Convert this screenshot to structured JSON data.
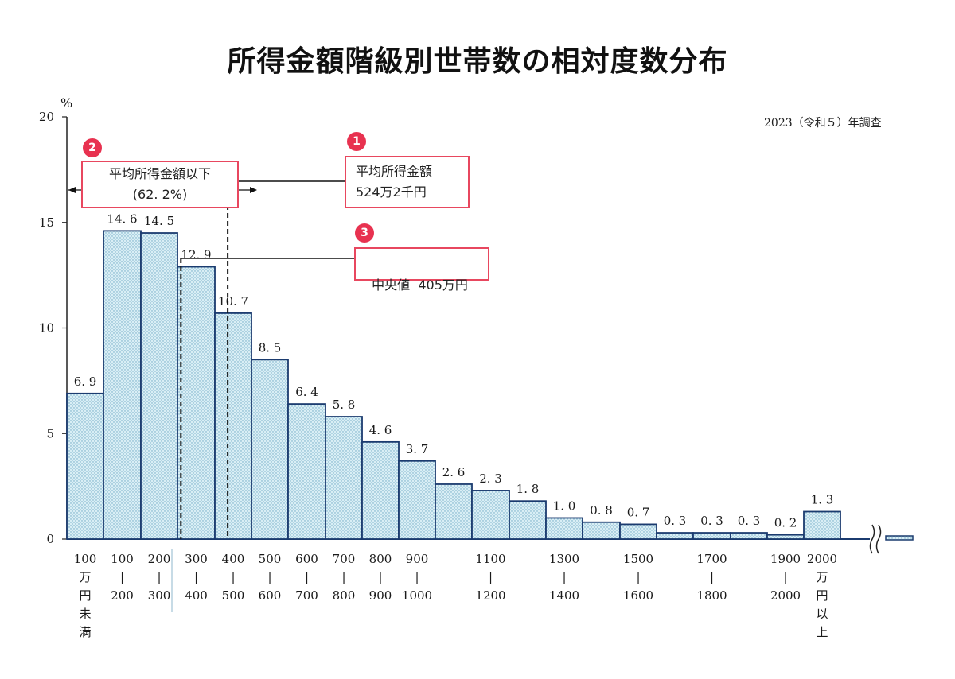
{
  "chart_data": {
    "type": "bar",
    "title": "所得金額階級別世帯数の相対度数分布",
    "survey_note": "2023（令和５）年調査",
    "ylabel": "%",
    "ylim": [
      0,
      20
    ],
    "yticks": [
      0,
      5,
      10,
      15,
      20
    ],
    "grid": false,
    "categories": [
      {
        "lines": [
          "100",
          "万",
          "円",
          "未",
          "満"
        ],
        "value": 6.9,
        "label": "6. 9"
      },
      {
        "lines": [
          "100",
          "|",
          "200"
        ],
        "value": 14.6,
        "label": "14. 6"
      },
      {
        "lines": [
          "200",
          "|",
          "300"
        ],
        "value": 14.5,
        "label": "14. 5"
      },
      {
        "lines": [
          "300",
          "|",
          "400"
        ],
        "value": 12.9,
        "label": "12. 9"
      },
      {
        "lines": [
          "400",
          "|",
          "500"
        ],
        "value": 10.7,
        "label": "10. 7"
      },
      {
        "lines": [
          "500",
          "|",
          "600"
        ],
        "value": 8.5,
        "label": "8. 5"
      },
      {
        "lines": [
          "600",
          "|",
          "700"
        ],
        "value": 6.4,
        "label": "6. 4"
      },
      {
        "lines": [
          "700",
          "|",
          "800"
        ],
        "value": 5.8,
        "label": "5. 8"
      },
      {
        "lines": [
          "800",
          "|",
          "900"
        ],
        "value": 4.6,
        "label": "4. 6"
      },
      {
        "lines": [
          "900",
          "|",
          "1000"
        ],
        "value": 3.7,
        "label": "3. 7"
      },
      {
        "lines": [],
        "value": 2.6,
        "label": "2. 6"
      },
      {
        "lines": [
          "1100",
          "|",
          "1200"
        ],
        "value": 2.3,
        "label": "2. 3"
      },
      {
        "lines": [],
        "value": 1.8,
        "label": "1. 8"
      },
      {
        "lines": [
          "1300",
          "|",
          "1400"
        ],
        "value": 1.0,
        "label": "1. 0"
      },
      {
        "lines": [],
        "value": 0.8,
        "label": "0. 8"
      },
      {
        "lines": [
          "1500",
          "|",
          "1600"
        ],
        "value": 0.7,
        "label": "0. 7"
      },
      {
        "lines": [],
        "value": 0.3,
        "label": "0. 3"
      },
      {
        "lines": [
          "1700",
          "|",
          "1800"
        ],
        "value": 0.3,
        "label": "0. 3"
      },
      {
        "lines": [],
        "value": 0.3,
        "label": "0. 3"
      },
      {
        "lines": [
          "1900",
          "|",
          "2000"
        ],
        "value": 0.2,
        "label": "0. 2"
      },
      {
        "lines": [
          "2000",
          "万",
          "円",
          "以",
          "上"
        ],
        "value": 1.3,
        "label": "1. 3"
      }
    ],
    "annotations": {
      "mean": {
        "badge": "1",
        "line1": "平均所得金額",
        "line2": "524万2千円",
        "value": 524.2
      },
      "below_mean": {
        "badge": "2",
        "line1": "平均所得金額以下",
        "line2": "(62. 2%)",
        "value": 62.2
      },
      "median": {
        "badge": "3",
        "text": "中央値  405万円",
        "value": 405
      }
    }
  },
  "colors": {
    "bar_fill": "#d9eef5",
    "bar_dot": "#6fa9c4",
    "bar_stroke": "#1b3b6f",
    "accent": "#e8475f",
    "badge": "#e83250"
  }
}
